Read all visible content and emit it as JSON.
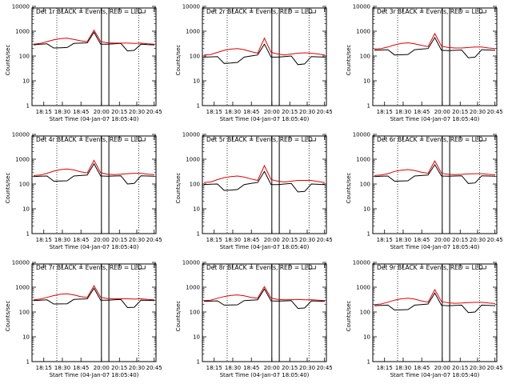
{
  "colors": {
    "events": "#000000",
    "lld": "#e00000",
    "background": "#ffffff",
    "axes": "#000000"
  },
  "common": {
    "xlabel": "Start Time (04-Jan-07 18:05:40)",
    "ylabel": "Counts/sec",
    "yticks": [
      "1",
      "10",
      "100",
      "1000",
      "10000"
    ],
    "xticks": [
      "18:15",
      "18:30",
      "18:45",
      "20:00",
      "20:15",
      "20:30",
      "20:45"
    ]
  },
  "chart_data": [
    {
      "type": "line",
      "title": "Det 1r BLACK = Events, RED = LLD",
      "yscale": "log",
      "ylim": [
        1,
        10000
      ],
      "series": [
        {
          "name": "Events",
          "values": [
            280,
            300,
            310,
            210,
            215,
            220,
            320,
            330,
            340,
            900,
            300,
            300,
            310,
            320,
            160,
            170,
            300,
            290,
            280
          ]
        },
        {
          "name": "LLD",
          "values": [
            300,
            320,
            380,
            450,
            500,
            520,
            470,
            410,
            380,
            1100,
            380,
            340,
            330,
            330,
            330,
            320,
            330,
            310,
            300
          ]
        }
      ]
    },
    {
      "type": "line",
      "title": "Det 2r BLACK = Events, RED = LLD",
      "yscale": "log",
      "ylim": [
        1,
        10000
      ],
      "series": [
        {
          "name": "Events",
          "values": [
            90,
            92,
            95,
            50,
            52,
            55,
            90,
            100,
            110,
            300,
            90,
            90,
            95,
            100,
            45,
            48,
            95,
            92,
            90
          ]
        },
        {
          "name": "LLD",
          "values": [
            110,
            115,
            140,
            170,
            190,
            200,
            180,
            150,
            130,
            520,
            140,
            120,
            110,
            120,
            130,
            135,
            130,
            120,
            110
          ]
        }
      ]
    },
    {
      "type": "line",
      "title": "Det 3r BLACK = Events, RED = LLD",
      "yscale": "log",
      "ylim": [
        1,
        10000
      ],
      "series": [
        {
          "name": "Events",
          "values": [
            170,
            175,
            180,
            110,
            112,
            115,
            180,
            190,
            200,
            550,
            170,
            165,
            170,
            175,
            85,
            90,
            180,
            175,
            170
          ]
        },
        {
          "name": "LLD",
          "values": [
            190,
            200,
            230,
            280,
            320,
            340,
            310,
            270,
            240,
            800,
            250,
            220,
            210,
            210,
            220,
            230,
            230,
            210,
            200
          ]
        }
      ]
    },
    {
      "type": "line",
      "title": "Det 4r BLACK = Events, RED = LLD",
      "yscale": "log",
      "ylim": [
        1,
        10000
      ],
      "series": [
        {
          "name": "Events",
          "values": [
            200,
            205,
            210,
            130,
            132,
            135,
            210,
            220,
            230,
            650,
            210,
            205,
            210,
            215,
            100,
            105,
            215,
            210,
            205
          ]
        },
        {
          "name": "LLD",
          "values": [
            220,
            230,
            270,
            330,
            380,
            400,
            370,
            310,
            280,
            900,
            280,
            250,
            240,
            250,
            260,
            270,
            270,
            250,
            240
          ]
        }
      ]
    },
    {
      "type": "line",
      "title": "Det 5r BLACK = Events, RED = LLD",
      "yscale": "log",
      "ylim": [
        1,
        10000
      ],
      "series": [
        {
          "name": "Events",
          "values": [
            95,
            98,
            100,
            55,
            57,
            60,
            95,
            105,
            115,
            320,
            95,
            95,
            100,
            105,
            48,
            50,
            100,
            97,
            95
          ]
        },
        {
          "name": "LLD",
          "values": [
            115,
            120,
            150,
            180,
            200,
            210,
            190,
            160,
            140,
            550,
            150,
            130,
            120,
            130,
            140,
            140,
            140,
            125,
            115
          ]
        }
      ]
    },
    {
      "type": "line",
      "title": "Det 6r BLACK = Events, RED = LLD",
      "yscale": "log",
      "ylim": [
        1,
        10000
      ],
      "series": [
        {
          "name": "Events",
          "values": [
            200,
            205,
            210,
            130,
            132,
            135,
            210,
            220,
            230,
            600,
            210,
            205,
            210,
            215,
            105,
            110,
            215,
            210,
            205
          ]
        },
        {
          "name": "LLD",
          "values": [
            220,
            230,
            260,
            320,
            360,
            380,
            350,
            300,
            270,
            850,
            270,
            245,
            240,
            245,
            255,
            260,
            260,
            245,
            235
          ]
        }
      ]
    },
    {
      "type": "line",
      "title": "Det 7r BLACK = Events, RED = LLD",
      "yscale": "log",
      "ylim": [
        1,
        10000
      ],
      "series": [
        {
          "name": "Events",
          "values": [
            290,
            300,
            310,
            210,
            212,
            215,
            320,
            330,
            340,
            900,
            300,
            300,
            310,
            320,
            150,
            155,
            300,
            295,
            290
          ]
        },
        {
          "name": "LLD",
          "values": [
            310,
            330,
            390,
            460,
            520,
            540,
            490,
            420,
            390,
            1150,
            390,
            350,
            340,
            340,
            340,
            330,
            340,
            320,
            310
          ]
        }
      ]
    },
    {
      "type": "line",
      "title": "Det 8r BLACK = Events, RED = LLD",
      "yscale": "log",
      "ylim": [
        1,
        10000
      ],
      "series": [
        {
          "name": "Events",
          "values": [
            270,
            275,
            280,
            190,
            192,
            195,
            290,
            300,
            310,
            850,
            280,
            275,
            280,
            290,
            140,
            145,
            280,
            275,
            270
          ]
        },
        {
          "name": "LLD",
          "values": [
            290,
            300,
            360,
            420,
            470,
            490,
            450,
            390,
            360,
            1050,
            360,
            320,
            310,
            315,
            320,
            310,
            315,
            300,
            290
          ]
        }
      ]
    },
    {
      "type": "line",
      "title": "Det 9r BLACK = Events, RED = LLD",
      "yscale": "log",
      "ylim": [
        1,
        10000
      ],
      "series": [
        {
          "name": "Events",
          "values": [
            180,
            185,
            190,
            120,
            122,
            125,
            190,
            200,
            210,
            580,
            185,
            180,
            185,
            190,
            95,
            100,
            190,
            185,
            180
          ]
        },
        {
          "name": "LLD",
          "values": [
            200,
            210,
            250,
            300,
            340,
            360,
            330,
            280,
            250,
            800,
            260,
            235,
            225,
            230,
            240,
            245,
            245,
            230,
            220
          ]
        }
      ]
    }
  ]
}
